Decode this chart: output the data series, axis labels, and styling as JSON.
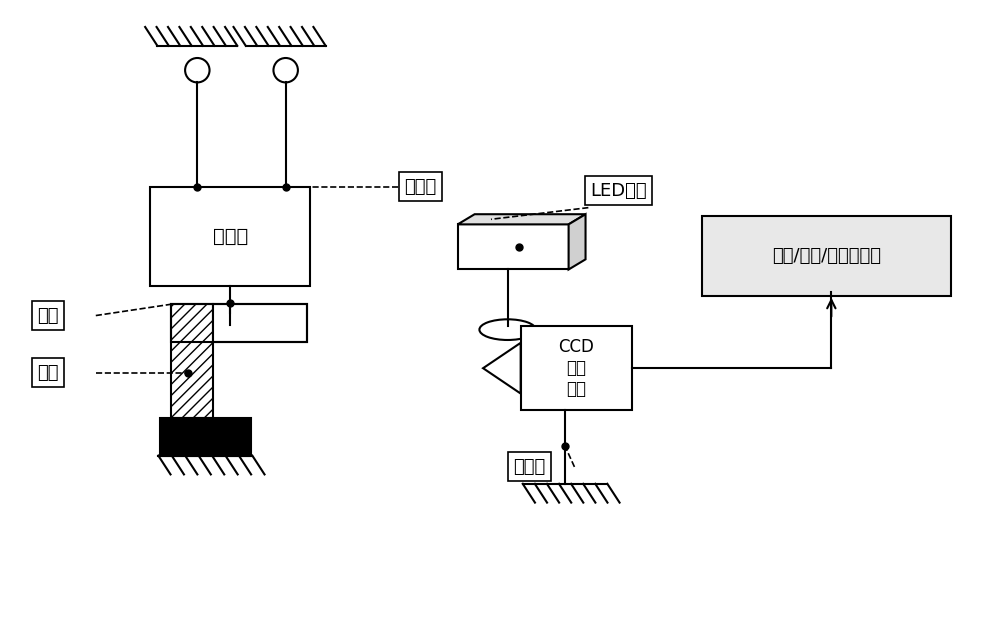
{
  "bg_color": "#ffffff",
  "lc": "#000000",
  "label_tan": "弹性绳",
  "label_exc": "激振器",
  "label_cyl": "圆筒",
  "label_fix": "夹具",
  "label_led": "LED光源",
  "label_ccd": "CCD\n工业\n相机",
  "label_tri": "三脚架",
  "label_pc": "分析/控制/显示计算机",
  "fs": 14,
  "fs_lbl": 13,
  "fs_ccd": 12,
  "lw": 1.5
}
